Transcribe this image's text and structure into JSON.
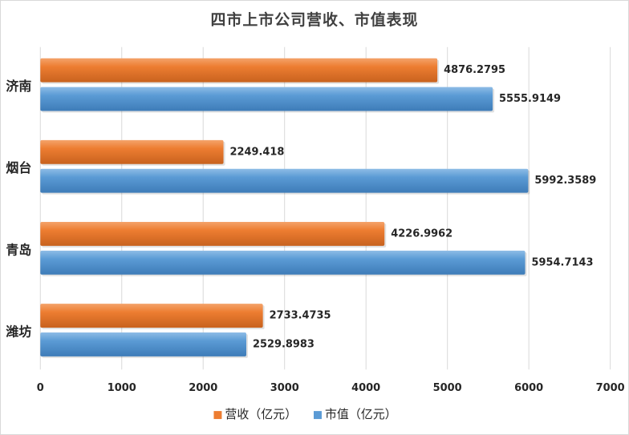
{
  "chart_data": {
    "type": "bar",
    "orientation": "horizontal",
    "title": "四市上市公司营收、市值表现",
    "categories": [
      "济南",
      "烟台",
      "青岛",
      "潍坊"
    ],
    "series": [
      {
        "name": "营收（亿元）",
        "color": "#ED7D31",
        "values": [
          4876.2795,
          2249.418,
          4226.9962,
          2733.4735
        ]
      },
      {
        "name": "市值（亿元）",
        "color": "#5B9BD5",
        "values": [
          5555.9149,
          5992.3589,
          5954.7143,
          2529.8983
        ]
      }
    ],
    "data_labels": [
      [
        "4876.2795",
        "2249.418",
        "4226.9962",
        "2733.4735"
      ],
      [
        "5555.9149",
        "5992.3589",
        "5954.7143",
        "2529.8983"
      ]
    ],
    "xlim": [
      0,
      7000
    ],
    "xticks": [
      "0",
      "1000",
      "2000",
      "3000",
      "4000",
      "5000",
      "6000",
      "7000"
    ],
    "grid": true,
    "legend_position": "bottom",
    "style": "3d-shaded bars"
  }
}
